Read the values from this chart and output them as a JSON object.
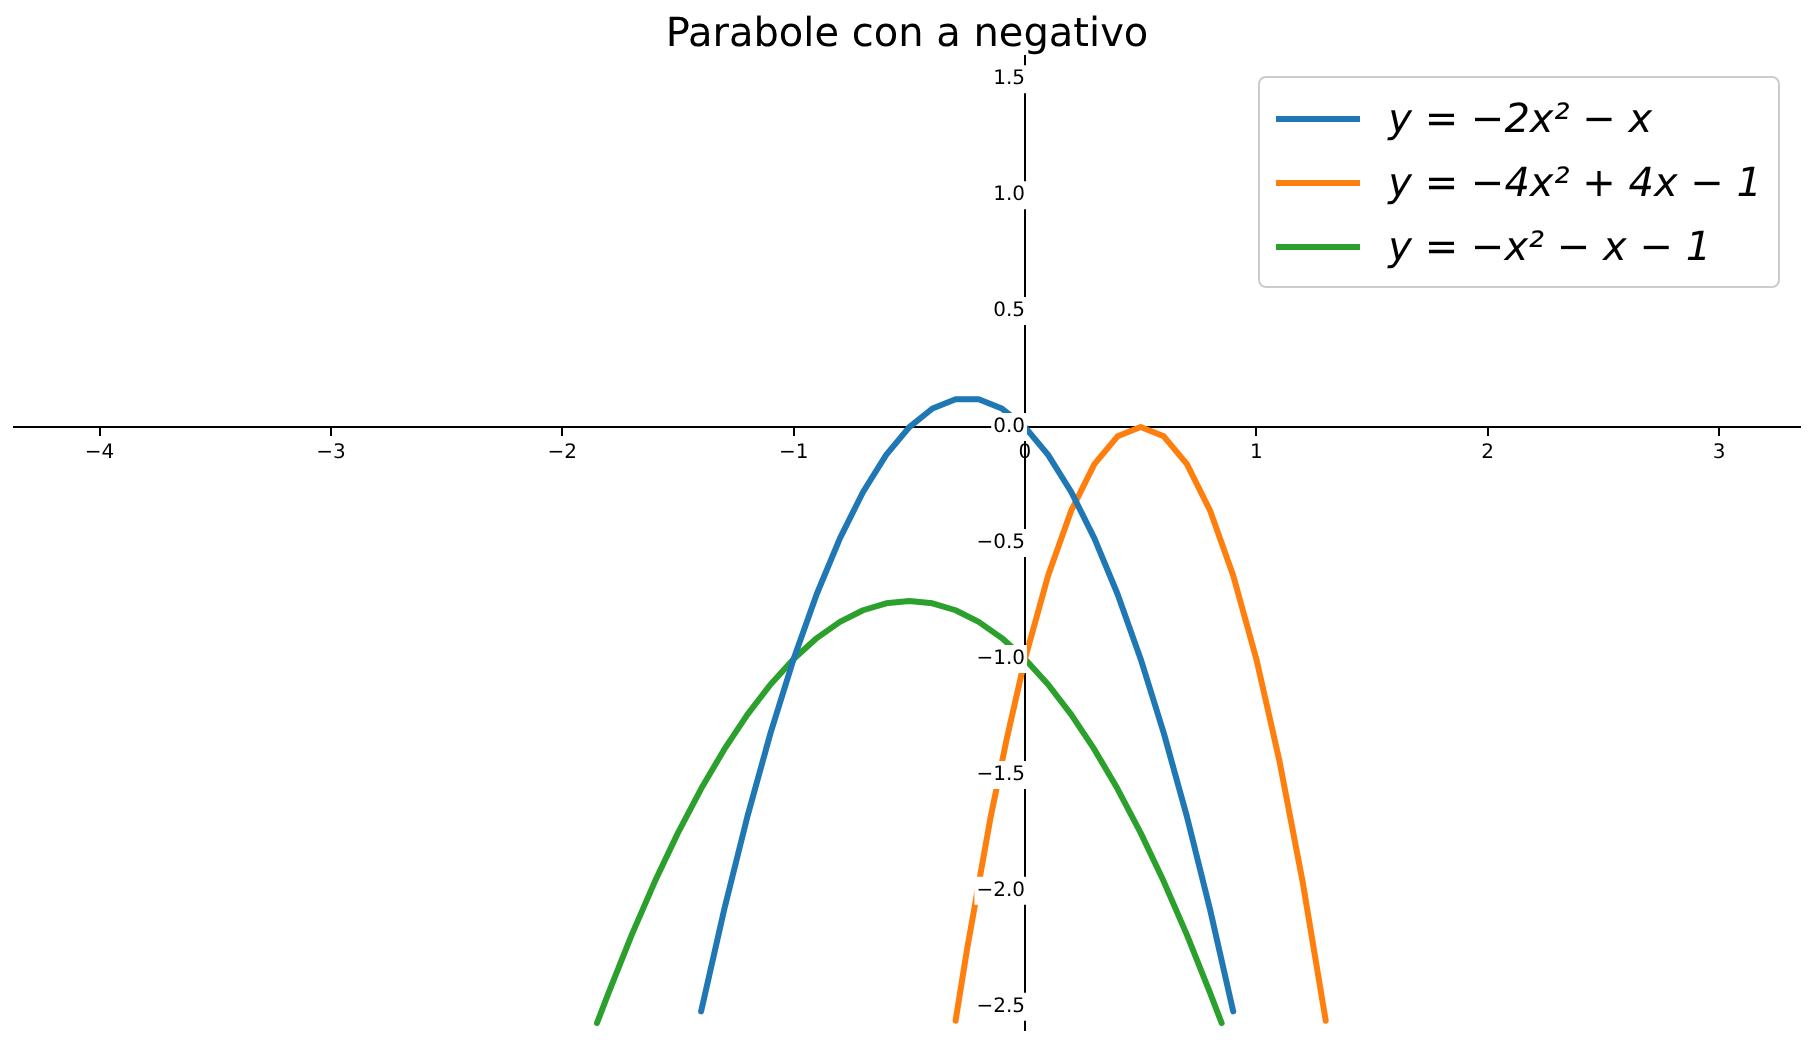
{
  "chart_data": {
    "type": "line",
    "title": "Parabole con a negativo",
    "xlim": [
      -4.37,
      3.35
    ],
    "ylim": [
      -2.6,
      1.6
    ],
    "xticks": [
      {
        "value": -4,
        "label": "−4"
      },
      {
        "value": -3,
        "label": "−3"
      },
      {
        "value": -2,
        "label": "−2"
      },
      {
        "value": -1,
        "label": "−1"
      },
      0,
      1,
      2,
      3
    ],
    "yticks": [
      {
        "value": -2.5,
        "label": "−2.5"
      },
      {
        "value": -2,
        "label": "−2.0"
      },
      {
        "value": -1.5,
        "label": "−1.5"
      },
      {
        "value": -1,
        "label": "−1.0"
      },
      {
        "value": -0.5,
        "label": "−0.5"
      },
      {
        "value": 0,
        "label": "0.0"
      },
      0.5,
      {
        "value": 1,
        "label": "1.0"
      },
      1.5
    ],
    "grid": false,
    "legend": "top right",
    "marker": "none",
    "line_style": "solid",
    "series": [
      {
        "name": "y = −2x² − x",
        "color": "#1f77b4",
        "x": [
          -1.4,
          -1.3,
          -1.2,
          -1.1,
          -1,
          -0.9,
          -0.8,
          -0.7,
          -0.6,
          -0.5,
          -0.4,
          -0.3,
          -0.25,
          -0.2,
          -0.1,
          0,
          0.1,
          0.2,
          0.3,
          0.4,
          0.5,
          0.6,
          0.7,
          0.8,
          0.9
        ],
        "values": [
          -2.52,
          -2.08,
          -1.68,
          -1.32,
          -1,
          -0.72,
          -0.48,
          -0.28,
          -0.12,
          0,
          0.08,
          0.12,
          0.12,
          0.12,
          0.08,
          0,
          -0.12,
          -0.28,
          -0.48,
          -0.72,
          -1,
          -1.32,
          -1.68,
          -2.08,
          -2.52
        ]
      },
      {
        "name": "y = −4x² + 4x − 1",
        "color": "#ff7f0e",
        "x": [
          -0.3,
          -0.25,
          -0.15,
          -0.08,
          0,
          0.1,
          0.2,
          0.3,
          0.4,
          0.5,
          0.6,
          0.7,
          0.8,
          0.9,
          1,
          1.1,
          1.2,
          1.3
        ],
        "values": [
          -2.56,
          -2.25,
          -1.69,
          -1.35,
          -1,
          -0.64,
          -0.36,
          -0.16,
          -0.04,
          0,
          -0.04,
          -0.16,
          -0.36,
          -0.64,
          -1,
          -1.44,
          -1.96,
          -2.56
        ]
      },
      {
        "name": "y = −x² − x − 1",
        "color": "#2ca02c",
        "x": [
          -1.85,
          -1.8,
          -1.7,
          -1.6,
          -1.5,
          -1.4,
          -1.3,
          -1.2,
          -1.1,
          -1,
          -0.9,
          -0.8,
          -0.7,
          -0.6,
          -0.5,
          -0.4,
          -0.3,
          -0.2,
          -0.1,
          0,
          0.1,
          0.2,
          0.3,
          0.4,
          0.5,
          0.6,
          0.7,
          0.8,
          0.85
        ],
        "values": [
          -2.57,
          -2.44,
          -2.19,
          -1.96,
          -1.75,
          -1.56,
          -1.39,
          -1.24,
          -1.11,
          -1,
          -0.91,
          -0.84,
          -0.79,
          -0.76,
          -0.75,
          -0.76,
          -0.79,
          -0.84,
          -0.91,
          -1,
          -1.11,
          -1.24,
          -1.39,
          -1.56,
          -1.75,
          -1.96,
          -2.19,
          -2.44,
          -2.57
        ]
      }
    ]
  }
}
